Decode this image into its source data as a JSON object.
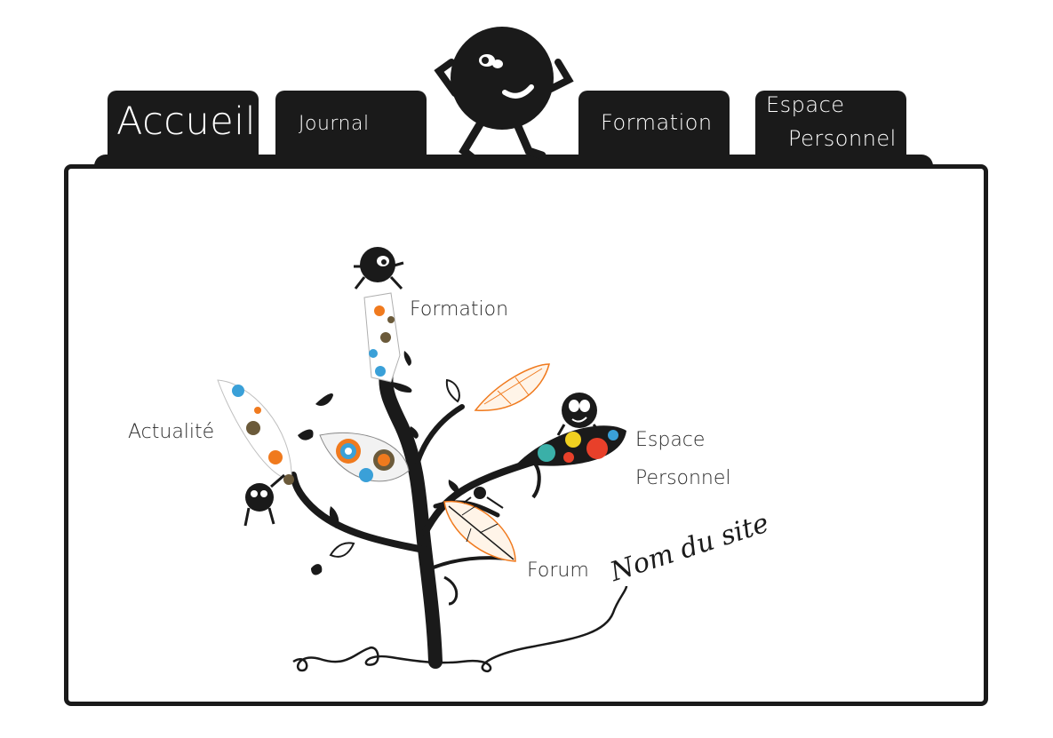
{
  "nav": {
    "accueil": "Accueil",
    "journal": "Journal",
    "formation": "Formation",
    "espace_line1": "Espace",
    "espace_line2": "Personnel"
  },
  "tree": {
    "formation": "Formation",
    "actualite": "Actualité",
    "espace_line1": "Espace",
    "espace_line2": "Personnel",
    "forum": "Forum",
    "site_name": "Nom du site"
  },
  "colors": {
    "dark": "#1a1a1a",
    "accent_orange": "#f07a1e",
    "accent_blue": "#3aa0d8",
    "accent_brown": "#6b5a3a",
    "accent_red": "#e8402a",
    "accent_yellow": "#f0d020",
    "accent_teal": "#3ab0a8"
  },
  "icons": [
    "mascot-creature-icon",
    "flower-pattern-leaf-icon",
    "tree-icon"
  ]
}
